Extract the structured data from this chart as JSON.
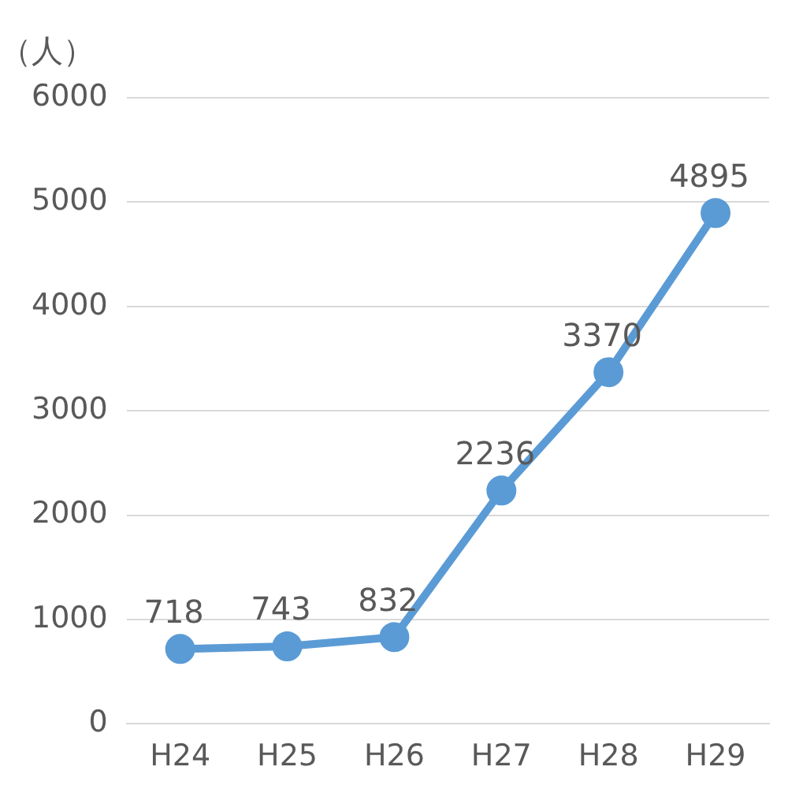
{
  "chart_data": {
    "type": "line",
    "ylabel": "（人）",
    "categories": [
      "H24",
      "H25",
      "H26",
      "H27",
      "H28",
      "H29"
    ],
    "series": [
      {
        "color": "#5b9bd5",
        "values": [
          718,
          743,
          832,
          2236,
          3370,
          4895
        ]
      }
    ],
    "ylim": [
      0,
      6000
    ],
    "yticks": [
      0,
      1000,
      2000,
      3000,
      4000,
      5000,
      6000
    ],
    "grid": "y",
    "legend": false,
    "marker": "circle",
    "line_style": "solid",
    "data_labels": true
  }
}
